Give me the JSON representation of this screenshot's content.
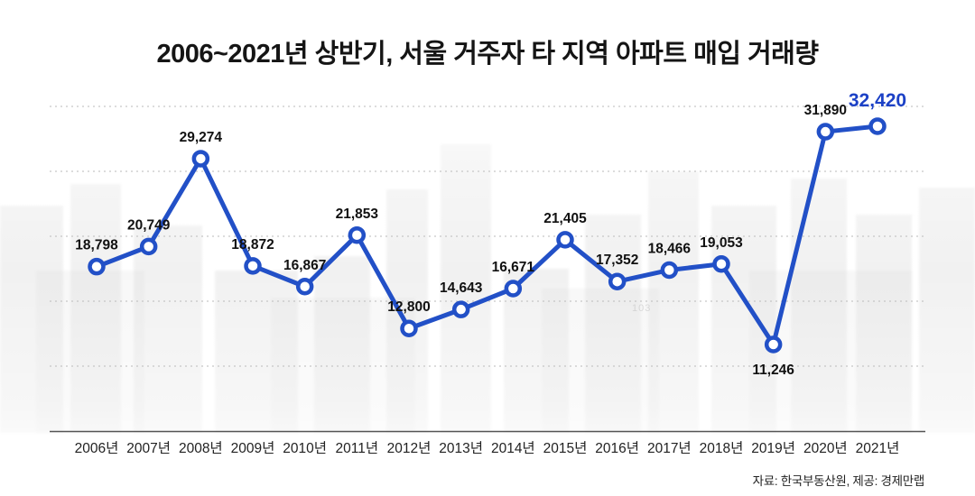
{
  "title": "2006~2021년 상반기, 서울 거주자 타 지역 아파트 매입 거래량",
  "source": "자료: 한국부동산원, 제공: 경제만랩",
  "background": {
    "building_number": "103"
  },
  "colors": {
    "line": "#2250c7",
    "marker_fill": "#ffffff",
    "highlight_label": "#1c41c6",
    "value_label": "#111111",
    "axis": "#555555",
    "grid": "#c6c6c6",
    "tick_label": "#222222"
  },
  "chart_data": {
    "type": "line",
    "title": "2006~2021년 상반기, 서울 거주자 타 지역 아파트 매입 거래량",
    "categories": [
      "2006년",
      "2007년",
      "2008년",
      "2009년",
      "2010년",
      "2011년",
      "2012년",
      "2013년",
      "2014년",
      "2015년",
      "2016년",
      "2017년",
      "2018년",
      "2019년",
      "2020년",
      "2021년"
    ],
    "values": [
      18798,
      20749,
      29274,
      18872,
      16867,
      21853,
      12800,
      14643,
      16671,
      21405,
      17352,
      18466,
      19053,
      11246,
      31890,
      32420
    ],
    "value_labels": [
      "18,798",
      "20,749",
      "29,274",
      "18,872",
      "16,867",
      "21,853",
      "12,800",
      "14,643",
      "16,671",
      "21,405",
      "17,352",
      "18,466",
      "19,053",
      "11,246",
      "31,890",
      "32,420"
    ],
    "highlight_index": 15,
    "labels_below_indices": [
      13
    ],
    "ylim": [
      10000,
      33500
    ],
    "xlabel": "",
    "ylabel": "",
    "grid": "dotted-horizontal",
    "legend": "none"
  }
}
